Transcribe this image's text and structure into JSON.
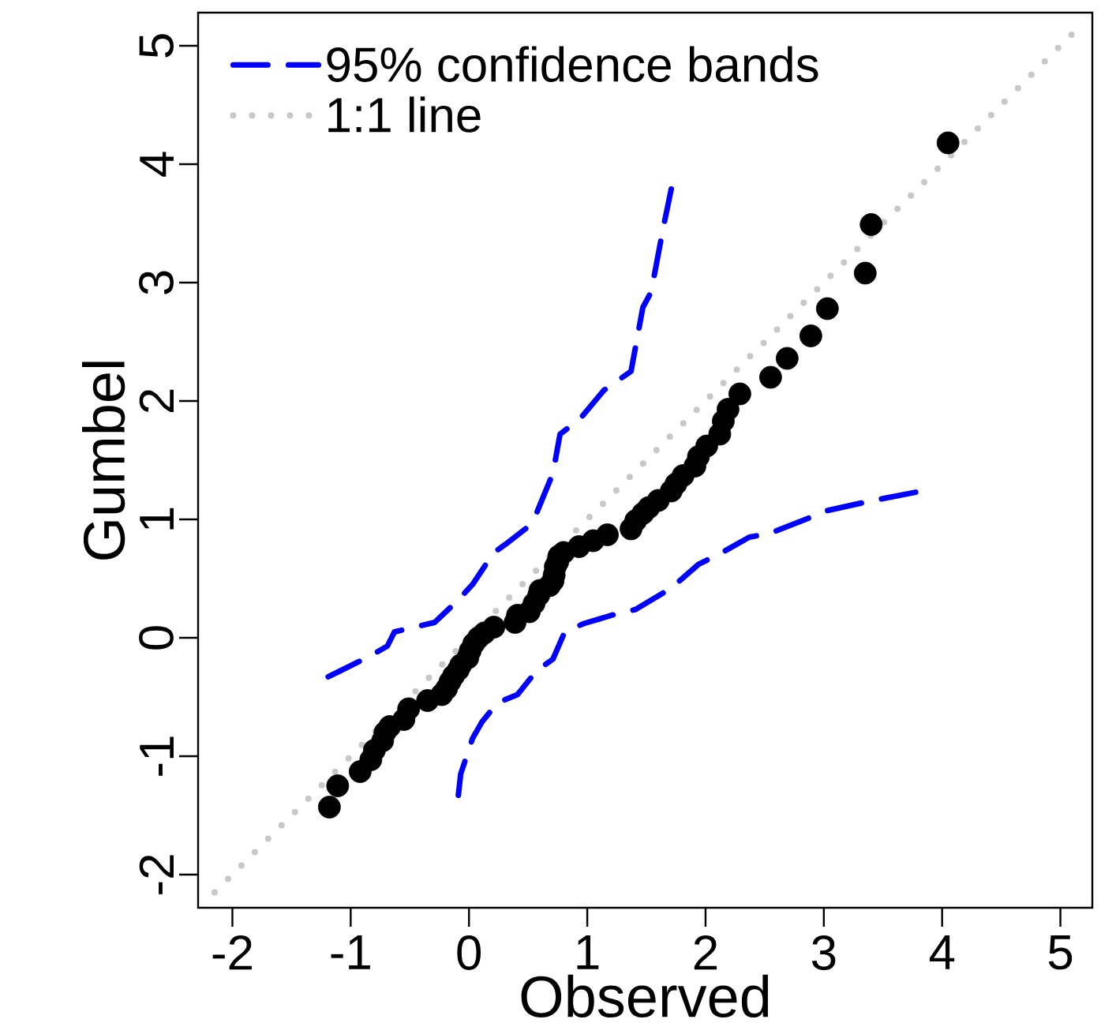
{
  "chart_data": {
    "type": "scatter",
    "xlabel": "Observed",
    "ylabel": "Gumbel",
    "legend": "top left",
    "xlim": [
      -2.29,
      5.27
    ],
    "ylim": [
      -2.28,
      5.28
    ],
    "xticks": [
      -2,
      -1,
      0,
      1,
      2,
      3,
      4,
      5
    ],
    "yticks": [
      -2,
      -1,
      0,
      1,
      2,
      3,
      4,
      5
    ],
    "series": [
      {
        "name": "95% confidence bands",
        "type": "line",
        "color": "#0000ff",
        "line_style": "dashed",
        "marker": "none",
        "x": [
          -1.19,
          -1.09,
          -0.83,
          -0.69,
          -0.63,
          -0.46,
          -0.29,
          -0.09,
          0.03,
          0.21,
          0.31,
          0.49,
          0.57,
          0.71,
          0.77,
          0.94,
          1.14,
          1.37,
          1.47,
          1.54,
          1.64,
          1.71
        ],
        "values": [
          -0.33,
          -0.28,
          -0.15,
          -0.07,
          0.05,
          0.09,
          0.13,
          0.32,
          0.45,
          0.72,
          0.79,
          0.93,
          1.05,
          1.39,
          1.72,
          1.85,
          2.09,
          2.25,
          2.79,
          2.92,
          3.45,
          3.79
        ]
      },
      {
        "type": "line",
        "color": "#0000ff",
        "line_style": "dashed",
        "marker": "none",
        "x": [
          -0.09,
          -0.07,
          0.03,
          0.11,
          0.24,
          0.41,
          0.57,
          0.71,
          0.81,
          0.97,
          1.24,
          1.41,
          1.71,
          1.94,
          2.14,
          2.37,
          2.54,
          2.87,
          3.01,
          3.37,
          3.83
        ],
        "values": [
          -1.33,
          -1.15,
          -0.85,
          -0.71,
          -0.55,
          -0.48,
          -0.28,
          -0.18,
          0.05,
          0.12,
          0.2,
          0.24,
          0.42,
          0.62,
          0.72,
          0.85,
          0.88,
          1.01,
          1.07,
          1.15,
          1.24
        ]
      },
      {
        "name": "1:1 line",
        "type": "line",
        "color": "#c8c8c8",
        "line_style": "dotted",
        "marker": "none",
        "x": [
          -2.15,
          5.2
        ],
        "values": [
          -2.15,
          5.2
        ]
      },
      {
        "type": "scatter",
        "color": "#000000",
        "marker": "circle",
        "x": [
          -1.18,
          -1.11,
          -0.92,
          -0.83,
          -0.8,
          -0.73,
          -0.71,
          -0.67,
          -0.55,
          -0.51,
          -0.35,
          -0.23,
          -0.19,
          -0.16,
          -0.13,
          -0.09,
          -0.07,
          -0.01,
          0.01,
          0.04,
          0.08,
          0.13,
          0.21,
          0.39,
          0.41,
          0.51,
          0.55,
          0.59,
          0.6,
          0.68,
          0.71,
          0.72,
          0.73,
          0.75,
          0.76,
          0.8,
          0.93,
          1.05,
          1.17,
          1.37,
          1.41,
          1.47,
          1.52,
          1.6,
          1.71,
          1.75,
          1.81,
          1.91,
          1.94,
          2.01,
          2.12,
          2.15,
          2.19,
          2.29,
          2.55,
          2.69,
          2.89,
          3.03,
          3.35,
          3.4,
          4.05
        ],
        "values": [
          -1.43,
          -1.25,
          -1.13,
          -1.03,
          -0.95,
          -0.87,
          -0.8,
          -0.75,
          -0.69,
          -0.6,
          -0.53,
          -0.48,
          -0.43,
          -0.37,
          -0.32,
          -0.27,
          -0.23,
          -0.17,
          -0.11,
          -0.05,
          0.0,
          0.04,
          0.09,
          0.13,
          0.19,
          0.22,
          0.29,
          0.36,
          0.4,
          0.44,
          0.48,
          0.53,
          0.6,
          0.64,
          0.69,
          0.72,
          0.77,
          0.82,
          0.87,
          0.92,
          0.99,
          1.05,
          1.1,
          1.16,
          1.24,
          1.3,
          1.37,
          1.45,
          1.53,
          1.62,
          1.72,
          1.83,
          1.93,
          2.06,
          2.2,
          2.36,
          2.55,
          2.78,
          3.08,
          3.49,
          4.18
        ]
      }
    ]
  }
}
